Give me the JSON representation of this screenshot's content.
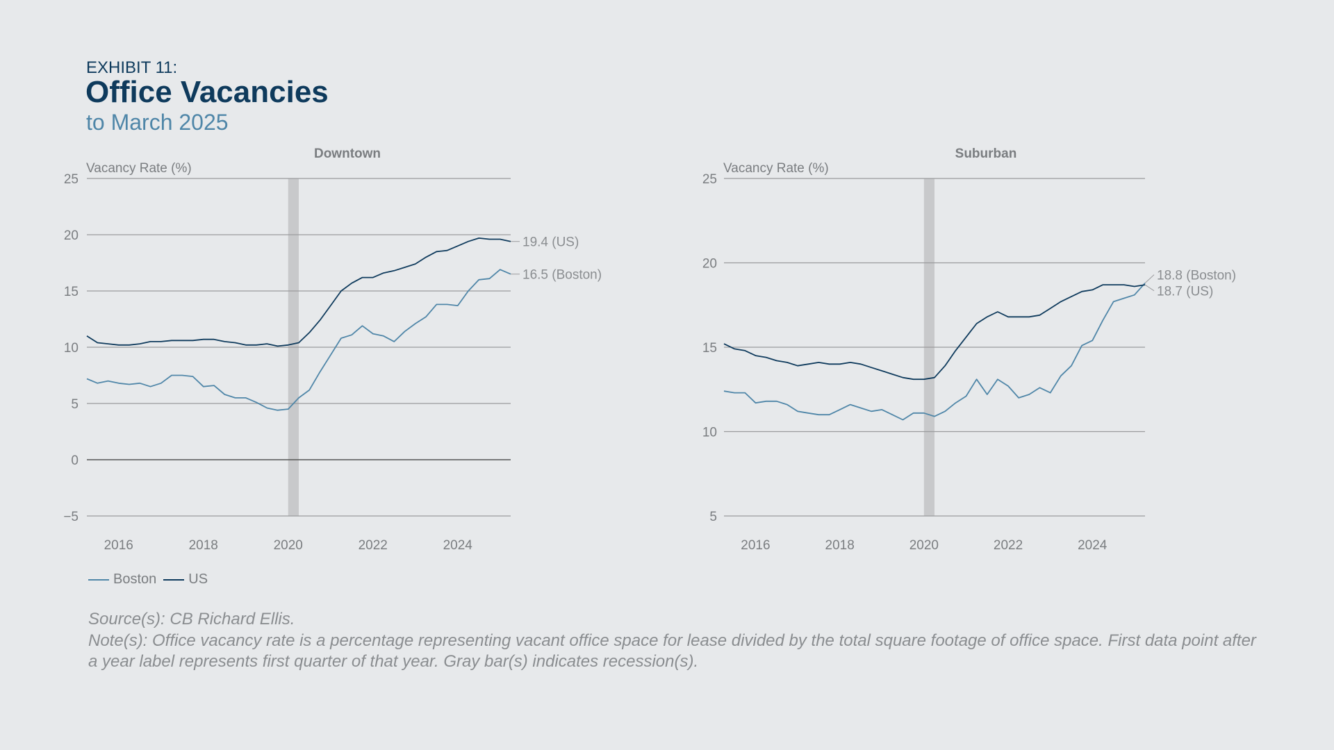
{
  "header": {
    "exhibit": "EXHIBIT 11:",
    "title": "Office Vacancies",
    "subtitle": "to March 2025"
  },
  "colors": {
    "boston": "#4f86a8",
    "us": "#0e3a5c",
    "recession": "#c8c9cb",
    "grid": "#9a9b9d",
    "zero": "#555555",
    "tick": "#7a7d80",
    "panel_title": "#7a7d80"
  },
  "legend": {
    "items": [
      {
        "label": "Boston",
        "color": "#4f86a8"
      },
      {
        "label": "US",
        "color": "#0e3a5c"
      }
    ]
  },
  "footer": {
    "source": "Source(s): CB Richard Ellis.",
    "note": "Note(s): Office vacancy rate is a percentage representing vacant office space for lease divided by the total square footage of office space. First data point after a year label represents first quarter of that year. Gray bar(s) indicates recession(s)."
  },
  "chart_data": [
    {
      "type": "line",
      "title": "Downtown",
      "ylabel": "Vacancy Rate (%)",
      "ylim": [
        -5,
        25
      ],
      "yticks": [
        -5,
        0,
        5,
        10,
        15,
        20,
        25
      ],
      "yticklabels": [
        "−5",
        "0",
        "5",
        "10",
        "15",
        "20",
        "25"
      ],
      "xlim": [
        2015.25,
        2025.25
      ],
      "xticks": [
        2016,
        2018,
        2020,
        2022,
        2024
      ],
      "xticklabels": [
        "2016",
        "2018",
        "2020",
        "2022",
        "2024"
      ],
      "recession": [
        2020.0,
        2020.25
      ],
      "x_start": 2015.25,
      "x_step": 0.25,
      "series": [
        {
          "name": "Boston",
          "end_label": "16.5 (Boston)",
          "values": [
            7.2,
            6.8,
            7.0,
            6.8,
            6.7,
            6.8,
            6.5,
            6.8,
            7.5,
            7.5,
            7.4,
            6.5,
            6.6,
            5.8,
            5.5,
            5.5,
            5.1,
            4.6,
            4.4,
            4.5,
            5.5,
            6.2,
            7.8,
            9.3,
            10.8,
            11.1,
            11.9,
            11.2,
            11.0,
            10.5,
            11.4,
            12.1,
            12.7,
            13.8,
            13.8,
            13.7,
            15.0,
            16.0,
            16.1,
            16.9,
            16.5
          ]
        },
        {
          "name": "US",
          "end_label": "19.4 (US)",
          "values": [
            11.0,
            10.4,
            10.3,
            10.2,
            10.2,
            10.3,
            10.5,
            10.5,
            10.6,
            10.6,
            10.6,
            10.7,
            10.7,
            10.5,
            10.4,
            10.2,
            10.2,
            10.3,
            10.1,
            10.2,
            10.4,
            11.3,
            12.4,
            13.7,
            15.0,
            15.7,
            16.2,
            16.2,
            16.6,
            16.8,
            17.1,
            17.4,
            18.0,
            18.5,
            18.6,
            19.0,
            19.4,
            19.7,
            19.6,
            19.6,
            19.4
          ]
        }
      ]
    },
    {
      "type": "line",
      "title": "Suburban",
      "ylabel": "Vacancy Rate (%)",
      "ylim": [
        5,
        25
      ],
      "yticks": [
        5,
        10,
        15,
        20,
        25
      ],
      "yticklabels": [
        "5",
        "10",
        "15",
        "20",
        "25"
      ],
      "xlim": [
        2015.25,
        2025.25
      ],
      "xticks": [
        2016,
        2018,
        2020,
        2022,
        2024
      ],
      "xticklabels": [
        "2016",
        "2018",
        "2020",
        "2022",
        "2024"
      ],
      "recession": [
        2020.0,
        2020.25
      ],
      "x_start": 2015.25,
      "x_step": 0.25,
      "series": [
        {
          "name": "Boston",
          "end_label": "18.8  (Boston)",
          "values": [
            12.4,
            12.3,
            12.3,
            11.7,
            11.8,
            11.8,
            11.6,
            11.2,
            11.1,
            11.0,
            11.0,
            11.3,
            11.6,
            11.4,
            11.2,
            11.3,
            11.0,
            10.7,
            11.1,
            11.1,
            10.9,
            11.2,
            11.7,
            12.1,
            13.1,
            12.2,
            13.1,
            12.7,
            12.0,
            12.2,
            12.6,
            12.3,
            13.3,
            13.9,
            15.1,
            15.4,
            16.6,
            17.7,
            17.9,
            18.1,
            18.8
          ]
        },
        {
          "name": "US",
          "end_label": "18.7  (US)",
          "values": [
            15.2,
            14.9,
            14.8,
            14.5,
            14.4,
            14.2,
            14.1,
            13.9,
            14.0,
            14.1,
            14.0,
            14.0,
            14.1,
            14.0,
            13.8,
            13.6,
            13.4,
            13.2,
            13.1,
            13.1,
            13.2,
            13.9,
            14.8,
            15.6,
            16.4,
            16.8,
            17.1,
            16.8,
            16.8,
            16.8,
            16.9,
            17.3,
            17.7,
            18.0,
            18.3,
            18.4,
            18.7,
            18.7,
            18.7,
            18.6,
            18.7
          ]
        }
      ]
    }
  ]
}
